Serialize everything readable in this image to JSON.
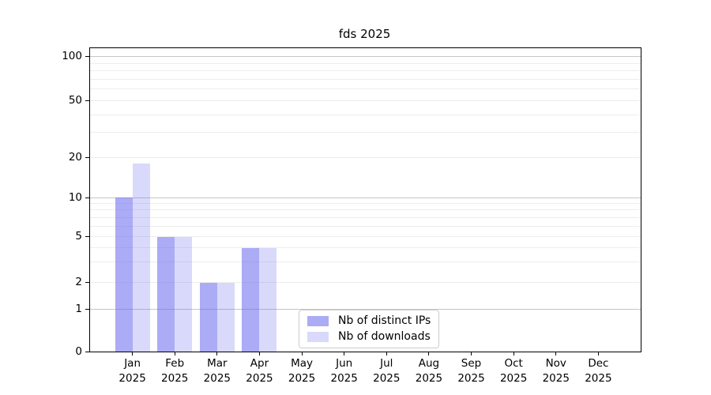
{
  "chart_data": {
    "type": "bar",
    "title": "fds 2025",
    "categories": [
      "Jan 2025",
      "Feb 2025",
      "Mar 2025",
      "Apr 2025",
      "May 2025",
      "Jun 2025",
      "Jul 2025",
      "Aug 2025",
      "Sep 2025",
      "Oct 2025",
      "Nov 2025",
      "Dec 2025"
    ],
    "series": [
      {
        "name": "Nb of distinct IPs",
        "color": "rgba(102,102,238,0.55)",
        "values": [
          10,
          5,
          2,
          4,
          0,
          0,
          0,
          0,
          0,
          0,
          0,
          0
        ]
      },
      {
        "name": "Nb of downloads",
        "color": "rgba(102,102,238,0.25)",
        "values": [
          18,
          5,
          2,
          4,
          0,
          0,
          0,
          0,
          0,
          0,
          0,
          0
        ]
      }
    ],
    "xlabel": "",
    "ylabel": "",
    "y_axis": {
      "scale": "log-like",
      "ylim": [
        0,
        100
      ],
      "tick_labels": [
        100,
        50,
        20,
        10,
        5,
        2,
        1,
        0
      ],
      "major_gridlines": [
        100,
        10,
        1
      ],
      "minor_gridlines": [
        90,
        80,
        70,
        60,
        50,
        40,
        30,
        20,
        9,
        8,
        7,
        6,
        5,
        4,
        3,
        2
      ]
    },
    "legend": {
      "position": "bottom-center-inside",
      "entries": [
        "Nb of distinct IPs",
        "Nb of downloads"
      ]
    },
    "grid": "horizontal"
  },
  "colors": {
    "bar_base": "#6666ee",
    "grid_major": "#c6c6c6",
    "grid_minor": "#ededed",
    "axis": "#000000",
    "legend_border": "#cccccc",
    "background": "#ffffff"
  }
}
